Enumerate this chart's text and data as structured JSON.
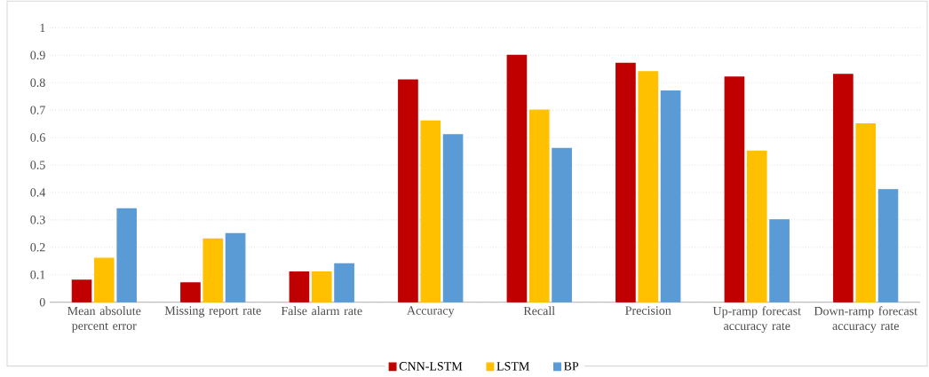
{
  "chart_data": {
    "type": "bar",
    "categories": [
      "Mean absolute percent error",
      "Missing report rate",
      "False alarm rate",
      "Accuracy",
      "Recall",
      "Precision",
      "Up-ramp forecast accuracy rate",
      "Down-ramp forecast accuracy rate"
    ],
    "series": [
      {
        "name": "CNN-LSTM",
        "color": "#c00000",
        "values": [
          0.08,
          0.07,
          0.11,
          0.81,
          0.9,
          0.87,
          0.82,
          0.83
        ]
      },
      {
        "name": "LSTM",
        "color": "#ffc000",
        "values": [
          0.16,
          0.23,
          0.11,
          0.66,
          0.7,
          0.84,
          0.55,
          0.65
        ]
      },
      {
        "name": "BP",
        "color": "#5b9bd5",
        "values": [
          0.34,
          0.25,
          0.14,
          0.61,
          0.56,
          0.77,
          0.3,
          0.41
        ]
      }
    ],
    "ylim": [
      0,
      1
    ],
    "yticks": [
      0,
      0.1,
      0.2,
      0.3,
      0.4,
      0.5,
      0.6,
      0.7,
      0.8,
      0.9,
      1
    ],
    "grid": "y",
    "legend": "bottom"
  }
}
